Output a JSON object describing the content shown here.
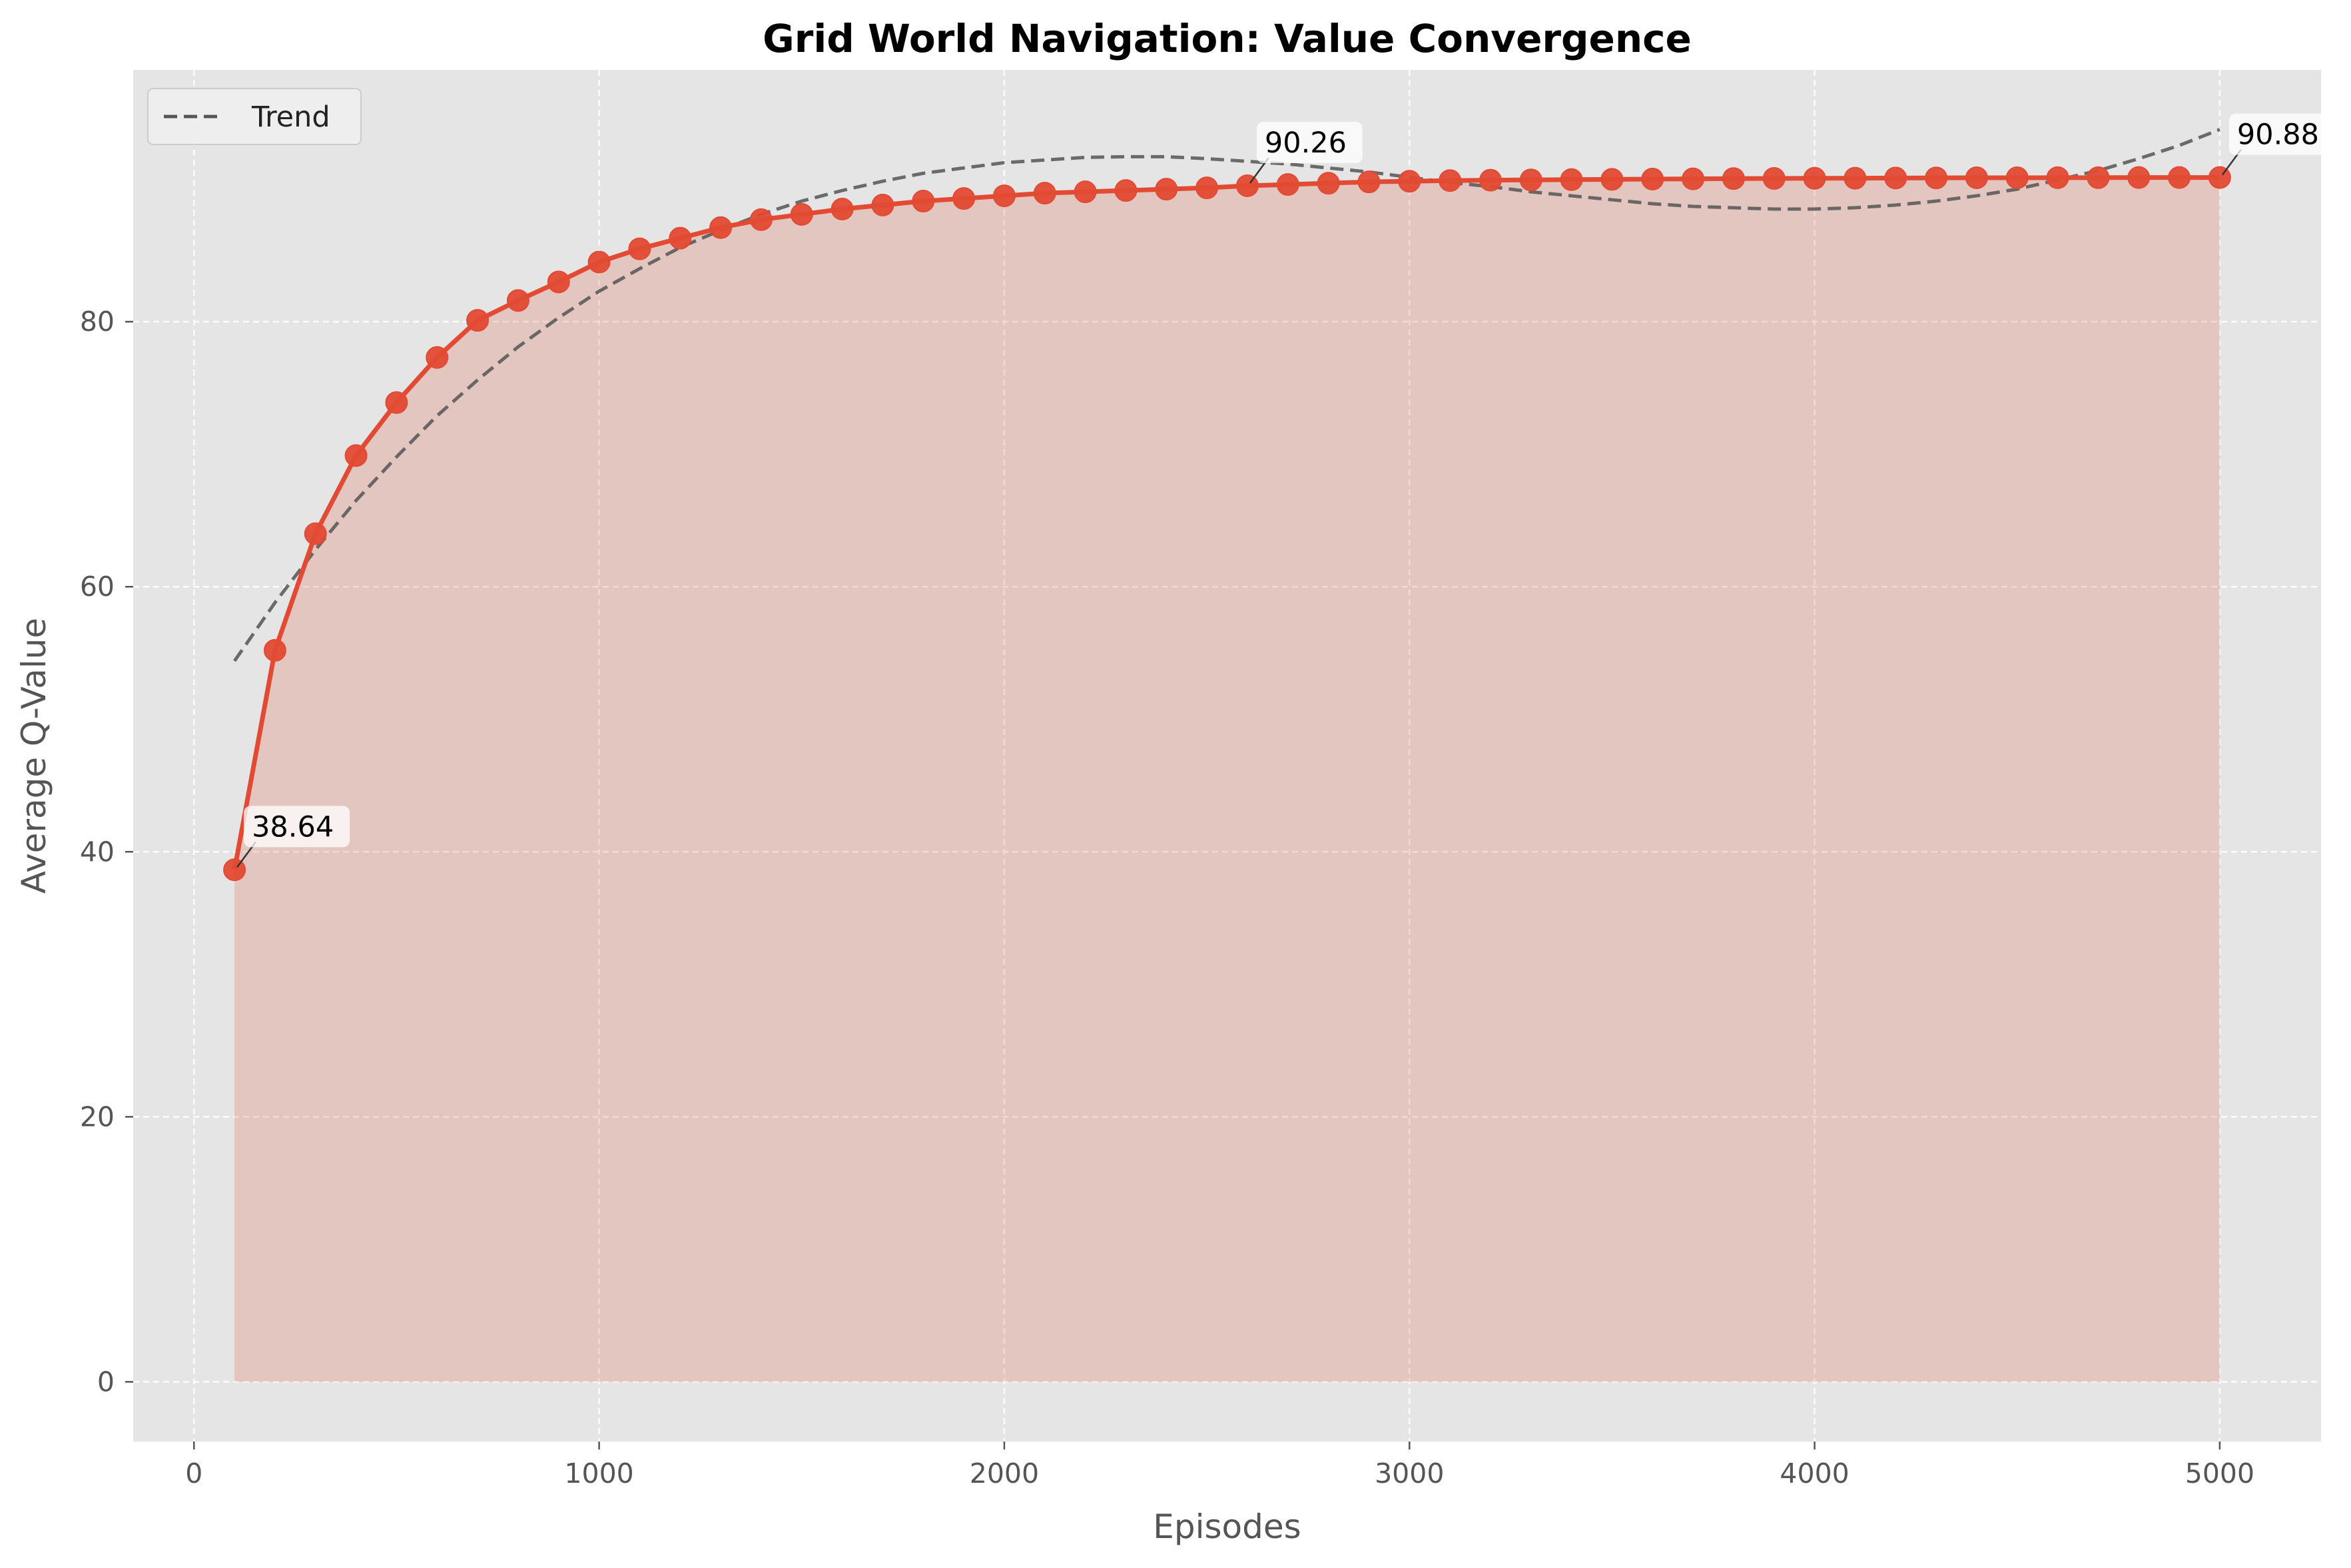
{
  "colors": {
    "series": "#E24A33",
    "fill": "#E24A33",
    "trend": "#555555",
    "plot_bg": "#E5E5E5",
    "grid": "#FFFFFF"
  },
  "chart_data": {
    "type": "line",
    "title": "Grid World Navigation: Value Convergence",
    "xlabel": "Episodes",
    "ylabel": "Average Q-Value",
    "xlim": [
      -150,
      5250
    ],
    "ylim": [
      -4.5,
      99
    ],
    "xticks": [
      0,
      1000,
      2000,
      3000,
      4000,
      5000
    ],
    "yticks": [
      0,
      20,
      40,
      60,
      80
    ],
    "grid": true,
    "legend": {
      "position": "top-left",
      "entries": [
        "Trend"
      ]
    },
    "series": [
      {
        "name": "",
        "x": [
          100,
          200,
          300,
          400,
          500,
          600,
          700,
          800,
          900,
          1000,
          1100,
          1200,
          1300,
          1400,
          1500,
          1600,
          1700,
          1800,
          1900,
          2000,
          2100,
          2200,
          2300,
          2400,
          2500,
          2600,
          2700,
          2800,
          2900,
          3000,
          3100,
          3200,
          3300,
          3400,
          3500,
          3600,
          3700,
          3800,
          3900,
          4000,
          4100,
          4200,
          4300,
          4400,
          4500,
          4600,
          4700,
          4800,
          4900,
          5000
        ],
        "y": [
          38.64,
          55.2,
          64.0,
          69.9,
          73.9,
          77.3,
          80.1,
          81.6,
          83.0,
          84.5,
          85.5,
          86.3,
          87.1,
          87.7,
          88.1,
          88.5,
          88.8,
          89.1,
          89.3,
          89.5,
          89.7,
          89.8,
          89.9,
          90.0,
          90.1,
          90.26,
          90.35,
          90.45,
          90.55,
          90.6,
          90.65,
          90.68,
          90.7,
          90.72,
          90.74,
          90.76,
          90.78,
          90.8,
          90.81,
          90.82,
          90.83,
          90.84,
          90.85,
          90.86,
          90.86,
          90.87,
          90.87,
          90.88,
          90.88,
          90.88
        ]
      },
      {
        "name": "Trend",
        "style": "dashed",
        "x": [
          100,
          200,
          300,
          400,
          500,
          600,
          700,
          800,
          900,
          1000,
          1100,
          1200,
          1300,
          1400,
          1500,
          1600,
          1700,
          1800,
          1900,
          2000,
          2100,
          2200,
          2300,
          2400,
          2500,
          2600,
          2700,
          2800,
          2900,
          3000,
          3100,
          3200,
          3300,
          3400,
          3500,
          3600,
          3700,
          3800,
          3900,
          4000,
          4100,
          4200,
          4300,
          4400,
          4500,
          4600,
          4700,
          4800,
          4900,
          5000
        ],
        "y": [
          54.4,
          58.8,
          62.8,
          66.5,
          69.8,
          72.9,
          75.6,
          78.1,
          80.3,
          82.3,
          84.0,
          85.6,
          86.9,
          88.1,
          89.1,
          89.9,
          90.6,
          91.2,
          91.6,
          92.0,
          92.2,
          92.4,
          92.45,
          92.45,
          92.3,
          92.1,
          91.9,
          91.6,
          91.3,
          90.9,
          90.5,
          90.2,
          89.8,
          89.5,
          89.2,
          88.9,
          88.7,
          88.6,
          88.5,
          88.5,
          88.6,
          88.8,
          89.1,
          89.5,
          90.0,
          90.7,
          91.4,
          92.3,
          93.3,
          94.5
        ]
      }
    ],
    "annotations": [
      {
        "x": 100,
        "y": 38.64,
        "text": "38.64"
      },
      {
        "x": 2600,
        "y": 90.26,
        "text": "90.26"
      },
      {
        "x": 5000,
        "y": 90.88,
        "text": "90.88"
      }
    ]
  }
}
